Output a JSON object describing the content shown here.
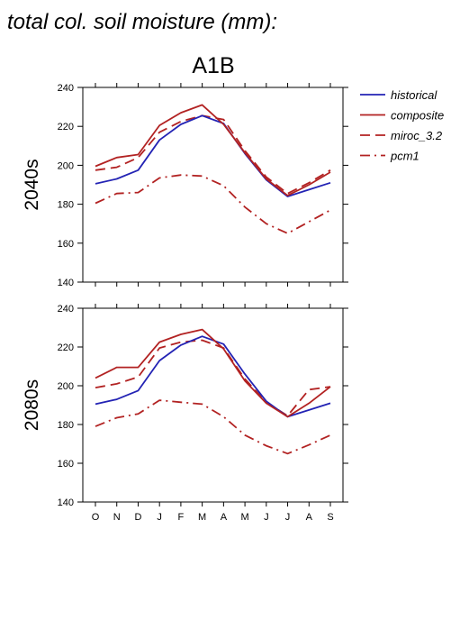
{
  "figure": {
    "title": "total col. soil moisture (mm):",
    "scenario": "A1B"
  },
  "legend": [
    {
      "name": "historical",
      "color": "#2323b4",
      "dash": "solid"
    },
    {
      "name": "composite",
      "color": "#b22222",
      "dash": "solid"
    },
    {
      "name": "miroc_3.2",
      "color": "#b22222",
      "dash": "dash"
    },
    {
      "name": "pcm1",
      "color": "#b22222",
      "dash": "dashdot"
    }
  ],
  "chart_data": [
    {
      "type": "line",
      "title": "2040s",
      "xlabel": "",
      "ylabel": "2040s",
      "categories": [
        "O",
        "N",
        "D",
        "J",
        "F",
        "M",
        "A",
        "M",
        "J",
        "J",
        "A",
        "S"
      ],
      "ylim": [
        140,
        240
      ],
      "yticks": [
        140,
        160,
        180,
        200,
        220,
        240
      ],
      "grid": false,
      "legend_position": "right",
      "series": [
        {
          "name": "historical",
          "values": [
            190.5,
            193,
            197.5,
            213,
            221,
            225.5,
            221.5,
            206,
            192.5,
            184,
            187.5,
            191
          ]
        },
        {
          "name": "composite",
          "values": [
            199.5,
            204,
            205.5,
            220.5,
            227,
            231,
            221,
            206.5,
            193,
            184.5,
            190,
            196.5
          ]
        },
        {
          "name": "miroc_3.2",
          "values": [
            197.5,
            199,
            204,
            217,
            222.5,
            225.5,
            223.5,
            207.5,
            194,
            185.5,
            191,
            197.5
          ]
        },
        {
          "name": "pcm1",
          "values": [
            180.5,
            185.5,
            186,
            193.5,
            195,
            194.5,
            189.5,
            178.5,
            170,
            165,
            171,
            177
          ]
        }
      ]
    },
    {
      "type": "line",
      "title": "2080s",
      "xlabel": "",
      "ylabel": "2080s",
      "categories": [
        "O",
        "N",
        "D",
        "J",
        "F",
        "M",
        "A",
        "M",
        "J",
        "J",
        "A",
        "S"
      ],
      "ylim": [
        140,
        240
      ],
      "yticks": [
        140,
        160,
        180,
        200,
        220,
        240
      ],
      "grid": false,
      "legend_position": "right",
      "series": [
        {
          "name": "historical",
          "values": [
            190.5,
            193,
            197.5,
            213,
            221,
            225.5,
            221.5,
            206,
            192,
            184,
            187.5,
            191
          ]
        },
        {
          "name": "composite",
          "values": [
            204,
            209.5,
            209.5,
            222.5,
            226.5,
            229,
            219,
            202.5,
            191,
            184,
            191,
            199.5
          ]
        },
        {
          "name": "miroc_3.2",
          "values": [
            199,
            201,
            204.5,
            219.5,
            222.5,
            223.5,
            219.5,
            203.5,
            191.5,
            184.5,
            198,
            199.5
          ]
        },
        {
          "name": "pcm1",
          "values": [
            179,
            183.5,
            185.5,
            192.5,
            191.5,
            190.5,
            184,
            174.5,
            169,
            165,
            169.5,
            174.5
          ]
        }
      ]
    }
  ]
}
